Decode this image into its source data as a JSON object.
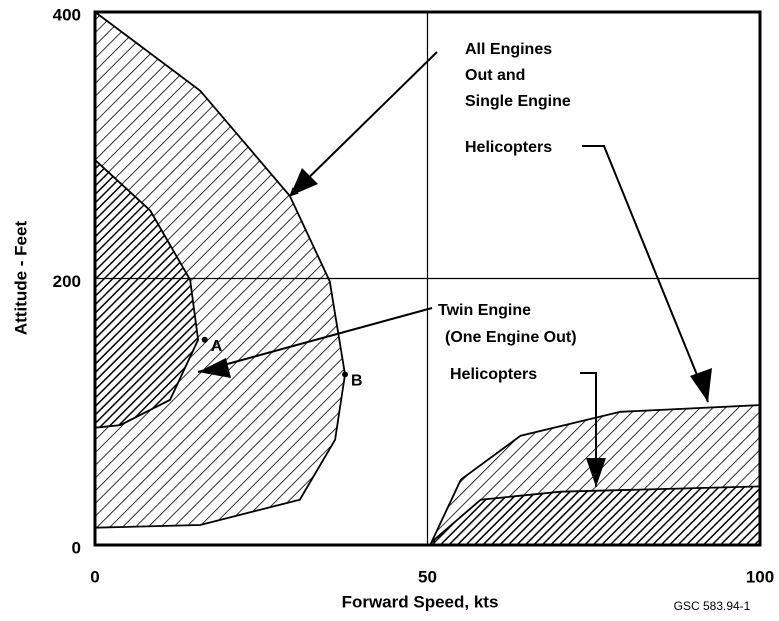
{
  "chart_data": {
    "type": "area",
    "xlabel": "Forward Speed, kts",
    "ylabel": "Attitude - Feet",
    "note": "GSC 583.94-1",
    "xlim": [
      0,
      100
    ],
    "ylim": [
      0,
      400
    ],
    "xticks": [
      0,
      50,
      100
    ],
    "yticks": [
      0,
      200,
      400
    ],
    "grid": true,
    "series": [
      {
        "color": "#000000",
        "x": [
          0,
          15.8,
          29.3,
          35.3,
          37.6,
          36.1,
          30.8,
          15.8,
          0
        ],
        "values": [
          400,
          341,
          262,
          198,
          128,
          79,
          34,
          15,
          13
        ]
      },
      {
        "color": "#000000",
        "x": [
          0,
          8.3,
          14.3,
          15.5,
          11.3,
          3.8,
          0
        ],
        "values": [
          289,
          251,
          199,
          154,
          109,
          90,
          88
        ]
      },
      {
        "color": "#000000",
        "x": [
          50.4,
          55,
          64,
          79,
          100,
          100
        ],
        "values": [
          0,
          49,
          82,
          100,
          105,
          0
        ]
      },
      {
        "color": "#000000",
        "x": [
          50.8,
          51,
          58,
          70,
          100,
          100
        ],
        "values": [
          0,
          4,
          34,
          40,
          44,
          0
        ]
      }
    ],
    "points": [
      {
        "label": "A",
        "x": 16.5,
        "y": 154
      },
      {
        "label": "B",
        "x": 37.6,
        "y": 128
      }
    ],
    "annotations": [
      "All Engines",
      "Out and",
      "Single Engine",
      "Helicopters",
      "Twin Engine",
      "(One Engine Out)",
      "Helicopters"
    ]
  }
}
